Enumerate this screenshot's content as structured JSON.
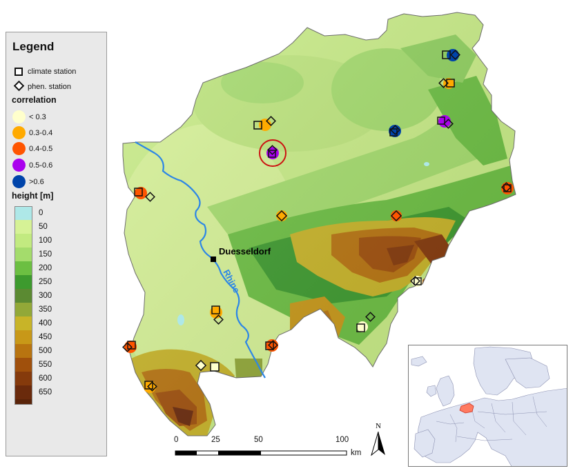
{
  "legend": {
    "title": "Legend",
    "symbols": [
      {
        "shape": "square",
        "label": "climate station"
      },
      {
        "shape": "diamond",
        "label": "phen. station"
      }
    ],
    "correlation_title": "correlation",
    "correlation_classes": [
      {
        "label": "< 0.3",
        "color": "#ffffcc"
      },
      {
        "label": "0.3-0.4",
        "color": "#ffaa00"
      },
      {
        "label": "0.4-0.5",
        "color": "#ff5500"
      },
      {
        "label": "0.5-0.6",
        "color": "#aa00ee"
      },
      {
        "label": ">0.6",
        "color": "#0044aa"
      }
    ],
    "height_title": "height [m]",
    "height_classes": [
      {
        "label": "0",
        "color": "#aee8e8"
      },
      {
        "label": "50",
        "color": "#d6f296"
      },
      {
        "label": "100",
        "color": "#c2ea80"
      },
      {
        "label": "150",
        "color": "#a4dc6c"
      },
      {
        "label": "200",
        "color": "#6cbf42"
      },
      {
        "label": "250",
        "color": "#3d9a2e"
      },
      {
        "label": "300",
        "color": "#5b8a32"
      },
      {
        "label": "350",
        "color": "#92a838"
      },
      {
        "label": "400",
        "color": "#c8b428"
      },
      {
        "label": "450",
        "color": "#c89818"
      },
      {
        "label": "500",
        "color": "#b87410"
      },
      {
        "label": "550",
        "color": "#a0500c"
      },
      {
        "label": "600",
        "color": "#853a0c"
      },
      {
        "label": "650",
        "color": "#6a2a0c"
      }
    ]
  },
  "map": {
    "city_label": "Duesseldorf",
    "river_label": "Rhine",
    "colors": {
      "river": "#2c86e6",
      "highlight": "#cc1111"
    }
  },
  "scale_bar": {
    "ticks": [
      "0",
      "25",
      "50",
      "100"
    ],
    "unit": "km"
  },
  "north_arrow": {
    "label": "N"
  }
}
